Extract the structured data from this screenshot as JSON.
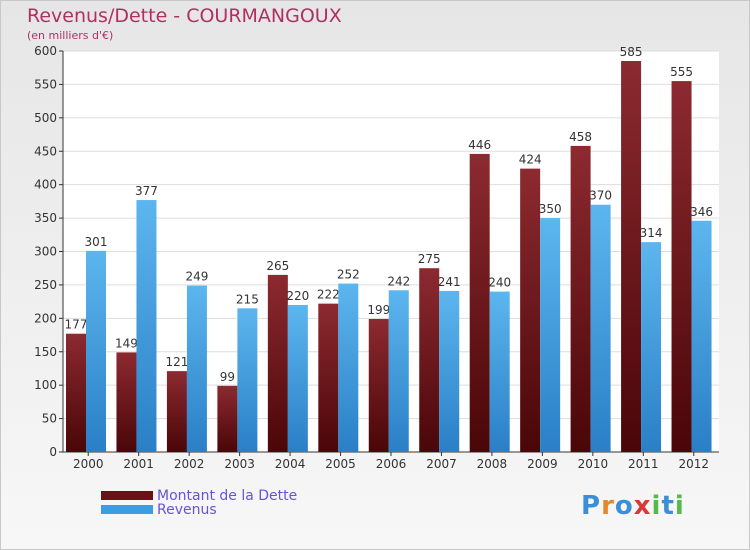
{
  "chart_data": {
    "type": "bar",
    "title": "Revenus/Dette - COURMANGOUX",
    "subtitle": "(en milliers d'€)",
    "xlabel": "",
    "ylabel": "",
    "ylim": [
      0,
      600
    ],
    "yticks": [
      0,
      50,
      100,
      150,
      200,
      250,
      300,
      350,
      400,
      450,
      500,
      550,
      600
    ],
    "categories": [
      "2000",
      "2001",
      "2002",
      "2003",
      "2004",
      "2005",
      "2006",
      "2007",
      "2008",
      "2009",
      "2010",
      "2011",
      "2012"
    ],
    "series": [
      {
        "name": "Montant de la Dette",
        "color": "#7a1e24",
        "values": [
          177,
          149,
          121,
          99,
          265,
          222,
          199,
          275,
          446,
          424,
          458,
          585,
          555
        ]
      },
      {
        "name": "Revenus",
        "color": "#4aa8e6",
        "values": [
          301,
          377,
          249,
          215,
          220,
          252,
          242,
          241,
          240,
          350,
          370,
          314,
          346
        ]
      }
    ],
    "grid": true,
    "legend": "bottom-left"
  },
  "logo": {
    "letters": [
      "P",
      "r",
      "o",
      "x",
      "i",
      "t",
      "i"
    ],
    "colors": [
      "#3a8fd8",
      "#e08a2c",
      "#3a8fd8",
      "#d83a3a",
      "#58b848",
      "#3a8fd8",
      "#58b848"
    ]
  }
}
